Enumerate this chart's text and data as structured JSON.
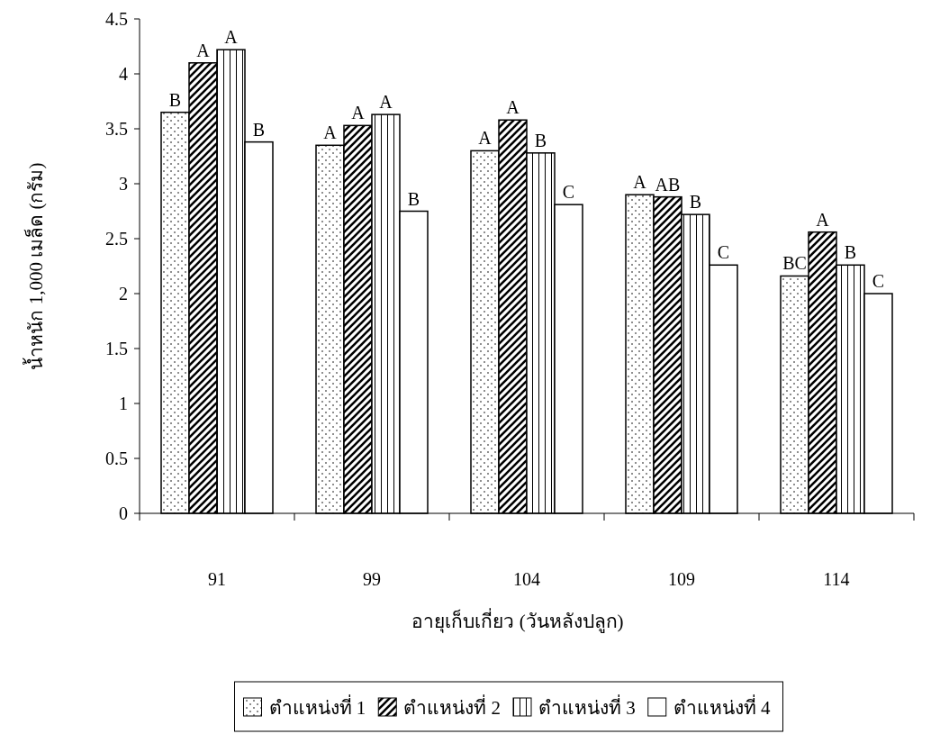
{
  "chart_data": {
    "type": "bar",
    "xlabel": "อายุเก็บเกี่ยว (วันหลังปลูก)",
    "ylabel": "น้ำหนัก 1,000 เมล็ด (กรัม)",
    "categories": [
      "91",
      "99",
      "104",
      "109",
      "114"
    ],
    "series": [
      {
        "name": "ตำแหน่งที่ 1",
        "color": "#000000",
        "values": [
          3.65,
          3.35,
          3.3,
          2.9,
          2.16
        ],
        "value_labels": [
          "B",
          "A",
          "A",
          "A",
          "BC"
        ]
      },
      {
        "name": "ตำแหน่งที่ 2",
        "color": "#000000",
        "values": [
          4.1,
          3.53,
          3.58,
          2.88,
          2.56
        ],
        "value_labels": [
          "A",
          "A",
          "A",
          "AB",
          "A"
        ]
      },
      {
        "name": "ตำแหน่งที่ 3",
        "color": "#000000",
        "values": [
          4.22,
          3.63,
          3.28,
          2.72,
          2.26
        ],
        "value_labels": [
          "A",
          "A",
          "B",
          "B",
          "B"
        ]
      },
      {
        "name": "ตำแหน่งที่ 4",
        "color": "#000000",
        "values": [
          3.38,
          2.75,
          2.81,
          2.26,
          2.0
        ],
        "value_labels": [
          "B",
          "B",
          "C",
          "C",
          "C"
        ]
      }
    ],
    "ylim": [
      0,
      4.5
    ],
    "yticks": [
      0,
      0.5,
      1,
      1.5,
      2,
      2.5,
      3,
      3.5,
      4,
      4.5
    ],
    "grid": false,
    "legend": "bottom"
  }
}
